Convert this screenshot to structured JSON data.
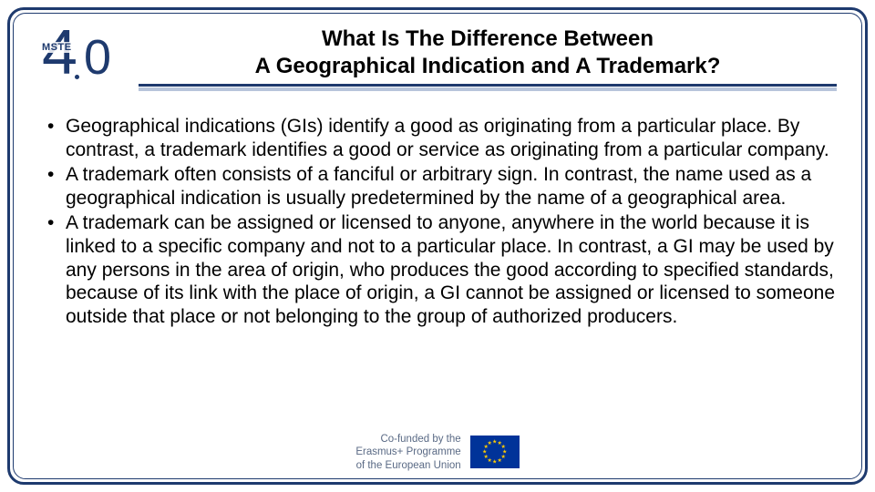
{
  "colors": {
    "frame": "#1e3a6e",
    "underline_primary": "#1e3a6e",
    "underline_secondary": "#b8c5db",
    "text": "#000000",
    "footer_text": "#5a6a85",
    "eu_blue": "#003399",
    "eu_gold": "#ffcc00",
    "background": "#ffffff"
  },
  "typography": {
    "title_fontsize": 24,
    "title_weight": "bold",
    "body_fontsize": 21,
    "footer_fontsize": 11.5,
    "font_family": "Arial"
  },
  "logo": {
    "top_text": "MSTE",
    "big_text": "4.0"
  },
  "title": {
    "line1": "What Is The Difference Between",
    "line2": "A Geographical Indication and A Trademark?"
  },
  "bullets": [
    "Geographical indications (GIs) identify a good as originating from a particular place. By contrast, a trademark identifies a good or service as originating from a particular company.",
    "A trademark often consists of a fanciful or arbitrary sign. In contrast, the name used as a geographical indication is usually predetermined by the name of a geographical area.",
    "A trademark can be assigned or licensed to anyone, anywhere in the world because it is linked to a specific company and not to a particular place. In contrast, a GI may be used by any persons in the area of origin, who produces the good according to specified standards, because of its link with the place of origin, a GI cannot be assigned or licensed to someone outside that place or not belonging to the group of authorized producers."
  ],
  "footer": {
    "line1": "Co-funded by the",
    "line2": "Erasmus+ Programme",
    "line3": "of the European Union"
  }
}
